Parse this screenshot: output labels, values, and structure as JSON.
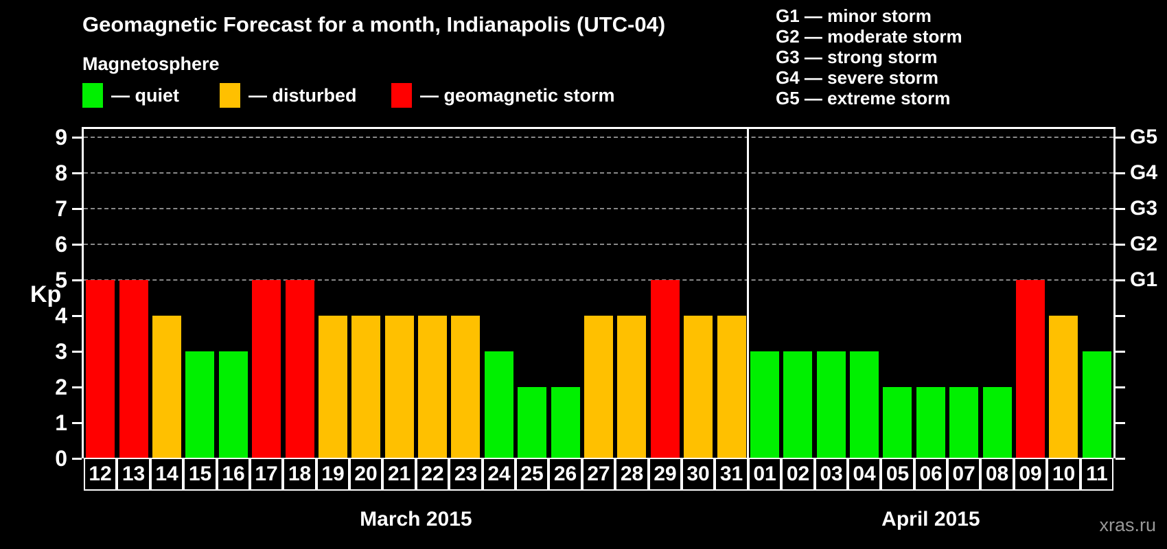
{
  "title": "Geomagnetic Forecast for a month, Indianapolis (UTC-04)",
  "legend": {
    "heading": "Magnetosphere",
    "items": [
      {
        "key": "quiet",
        "label": "— quiet",
        "color": "#00F000"
      },
      {
        "key": "disturbed",
        "label": "— disturbed",
        "color": "#FFC000"
      },
      {
        "key": "storm",
        "label": "— geomagnetic storm",
        "color": "#FF0000"
      }
    ]
  },
  "g_scale_legend": [
    {
      "level": "G1",
      "name": "minor storm"
    },
    {
      "level": "G2",
      "name": "moderate storm"
    },
    {
      "level": "G3",
      "name": "strong storm"
    },
    {
      "level": "G4",
      "name": "severe storm"
    },
    {
      "level": "G5",
      "name": "extreme storm"
    }
  ],
  "watermark": "xras.ru",
  "chart_data": {
    "type": "bar",
    "title": "Geomagnetic Forecast for a month, Indianapolis (UTC-04)",
    "ylabel": "Kp",
    "ylim": [
      0,
      9
    ],
    "yticks": [
      0,
      1,
      2,
      3,
      4,
      5,
      6,
      7,
      8,
      9
    ],
    "gridlines_at_kp": [
      5,
      6,
      7,
      8,
      9
    ],
    "grid": "dashed",
    "legend_position": "top",
    "right_axis": [
      {
        "kp": 5,
        "label": "G1"
      },
      {
        "kp": 6,
        "label": "G2"
      },
      {
        "kp": 7,
        "label": "G3"
      },
      {
        "kp": 8,
        "label": "G4"
      },
      {
        "kp": 9,
        "label": "G5"
      }
    ],
    "series_colors": {
      "quiet": "#00F000",
      "disturbed": "#FFC000",
      "storm": "#FF0000"
    },
    "months": [
      {
        "label": "March 2015",
        "days": [
          {
            "day": "12",
            "kp": 5,
            "state": "storm"
          },
          {
            "day": "13",
            "kp": 5,
            "state": "storm"
          },
          {
            "day": "14",
            "kp": 4,
            "state": "disturbed"
          },
          {
            "day": "15",
            "kp": 3,
            "state": "quiet"
          },
          {
            "day": "16",
            "kp": 3,
            "state": "quiet"
          },
          {
            "day": "17",
            "kp": 5,
            "state": "storm"
          },
          {
            "day": "18",
            "kp": 5,
            "state": "storm"
          },
          {
            "day": "19",
            "kp": 4,
            "state": "disturbed"
          },
          {
            "day": "20",
            "kp": 4,
            "state": "disturbed"
          },
          {
            "day": "21",
            "kp": 4,
            "state": "disturbed"
          },
          {
            "day": "22",
            "kp": 4,
            "state": "disturbed"
          },
          {
            "day": "23",
            "kp": 4,
            "state": "disturbed"
          },
          {
            "day": "24",
            "kp": 3,
            "state": "quiet"
          },
          {
            "day": "25",
            "kp": 2,
            "state": "quiet"
          },
          {
            "day": "26",
            "kp": 2,
            "state": "quiet"
          },
          {
            "day": "27",
            "kp": 4,
            "state": "disturbed"
          },
          {
            "day": "28",
            "kp": 4,
            "state": "disturbed"
          },
          {
            "day": "29",
            "kp": 5,
            "state": "storm"
          },
          {
            "day": "30",
            "kp": 4,
            "state": "disturbed"
          },
          {
            "day": "31",
            "kp": 4,
            "state": "disturbed"
          }
        ]
      },
      {
        "label": "April 2015",
        "days": [
          {
            "day": "01",
            "kp": 3,
            "state": "quiet"
          },
          {
            "day": "02",
            "kp": 3,
            "state": "quiet"
          },
          {
            "day": "03",
            "kp": 3,
            "state": "quiet"
          },
          {
            "day": "04",
            "kp": 3,
            "state": "quiet"
          },
          {
            "day": "05",
            "kp": 2,
            "state": "quiet"
          },
          {
            "day": "06",
            "kp": 2,
            "state": "quiet"
          },
          {
            "day": "07",
            "kp": 2,
            "state": "quiet"
          },
          {
            "day": "08",
            "kp": 2,
            "state": "quiet"
          },
          {
            "day": "09",
            "kp": 5,
            "state": "storm"
          },
          {
            "day": "10",
            "kp": 4,
            "state": "disturbed"
          },
          {
            "day": "11",
            "kp": 3,
            "state": "quiet"
          }
        ]
      }
    ]
  }
}
